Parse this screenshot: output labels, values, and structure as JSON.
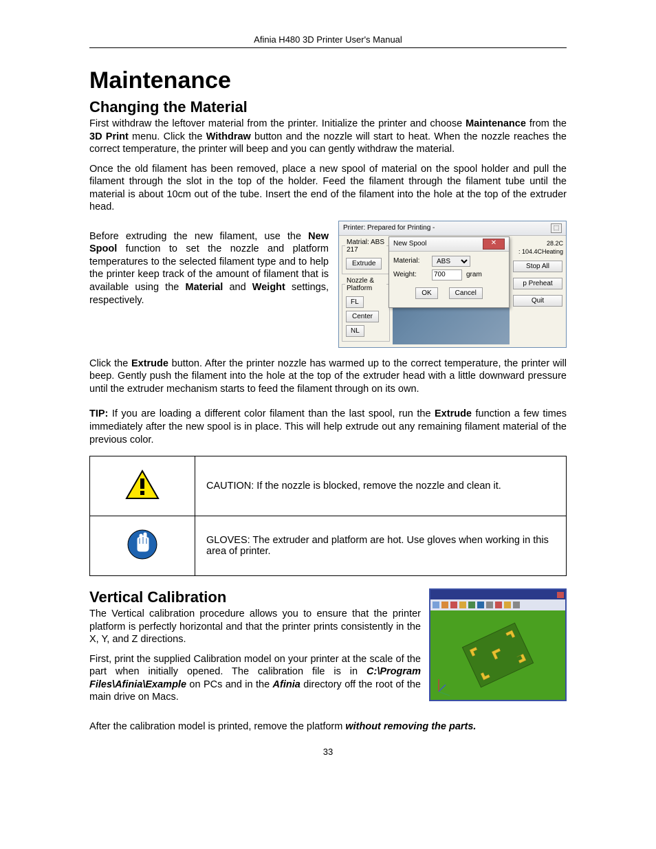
{
  "header": "Afinia H480 3D Printer User's Manual",
  "h1": "Maintenance",
  "h2a": "Changing the Material",
  "p1_parts": [
    {
      "t": "First withdraw the leftover material from the printer. Initialize the printer and choose "
    },
    {
      "t": "Maintenance",
      "cls": "bold"
    },
    {
      "t": " from the "
    },
    {
      "t": "3D Print",
      "cls": "bold"
    },
    {
      "t": " menu. Click the "
    },
    {
      "t": "Withdraw",
      "cls": "bold"
    },
    {
      "t": " button and the nozzle will start to heat. When the nozzle reaches the correct temperature, the printer will beep and you can gently withdraw the material."
    }
  ],
  "p2": "Once the old filament has been removed, place a new spool of material on the spool holder and pull the filament through the slot in the top of the holder.   Feed the filament through the filament tube until the material is about 10cm out of the tube. Insert the end of the filament into the hole at the top of the extruder head.",
  "p3_parts": [
    {
      "t": "Before extruding the new filament, use the "
    },
    {
      "t": "New Spool",
      "cls": "bold"
    },
    {
      "t": " function to set the nozzle and platform temperatures to the selected filament type and to help the printer keep track of the amount of filament that is available using the "
    },
    {
      "t": "Material",
      "cls": "bold"
    },
    {
      "t": " and "
    },
    {
      "t": "Weight",
      "cls": "bold"
    },
    {
      "t": " settings, respectively."
    }
  ],
  "win": {
    "title": "Printer: Prepared for Printing -",
    "material_legend": "Matrial: ABS 217",
    "extrude": "Extrude",
    "np_legend": "Nozzle & Platform",
    "fl": "FL",
    "center": "Center",
    "nl": "NL",
    "temp1": "28.2C",
    "temp2": "104.4CHeating",
    "stopall": "Stop All",
    "preheat": "Preheat",
    "quit": "Quit",
    "dlg_title": "New Spool",
    "dlg_mat_label": "Material:",
    "dlg_mat_value": "ABS",
    "dlg_wt_label": "Weight:",
    "dlg_wt_value": "700",
    "dlg_wt_unit": "gram",
    "ok": "OK",
    "cancel": "Cancel"
  },
  "p4_parts": [
    {
      "t": "Click the "
    },
    {
      "t": "Extrude",
      "cls": "bold"
    },
    {
      "t": " button. After the printer nozzle has warmed up to the correct temperature, the printer will beep. Gently push the filament into the hole at the top of the extruder head with a little downward pressure until the extruder mechanism starts to feed the filament through on its own."
    }
  ],
  "tip_parts": [
    {
      "t": "TIP:",
      "cls": "bold"
    },
    {
      "t": " If you are loading a different color filament than the last spool, run the "
    },
    {
      "t": "Extrude",
      "cls": "bold"
    },
    {
      "t": " function a few times immediately after the new spool is in place. This will help extrude out any remaining filament material of the previous color."
    }
  ],
  "caution": "CAUTION: If the nozzle is blocked, remove the nozzle and clean it.",
  "gloves": "GLOVES: The extruder and platform are hot. Use gloves when working in this area of printer.",
  "h2b": "Vertical Calibration",
  "vc1": "The Vertical calibration procedure allows you to ensure that the printer platform is perfectly horizontal and that the printer prints consistently in the X, Y, and Z directions.",
  "vc2_parts": [
    {
      "t": "First, print the supplied Calibration model on your printer at the scale of the part when initially opened. The calibration file is in "
    },
    {
      "t": "C:\\Program Files\\Afinia\\Example",
      "cls": "bolditalic"
    },
    {
      "t": " on PCs and in the "
    },
    {
      "t": "Afinia",
      "cls": "bolditalic"
    },
    {
      "t": " directory off the root of the main drive on Macs."
    }
  ],
  "vc3_parts": [
    {
      "t": "After the calibration model is printed, remove the platform "
    },
    {
      "t": "without removing the parts.",
      "cls": "bolditalic"
    }
  ],
  "toolbar_colors": [
    "#7aa0d8",
    "#d88a3a",
    "#c75050",
    "#d8a73a",
    "#4a8a4a",
    "#2a6aa8",
    "#888",
    "#c75050",
    "#d8a73a",
    "#888"
  ],
  "calib_green": "#4aa020",
  "page_number": "33"
}
